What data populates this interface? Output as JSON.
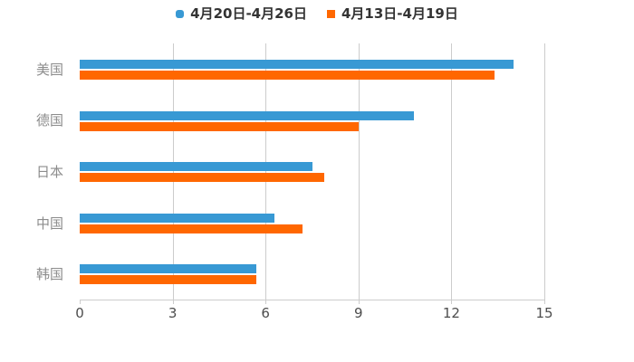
{
  "legend": {
    "items": [
      {
        "label": "4月20日-4月26日",
        "color": "#3899d4",
        "shape": "round"
      },
      {
        "label": "4月13日-4月19日",
        "color": "#ff6700",
        "shape": "square"
      }
    ]
  },
  "chart_data": {
    "type": "bar",
    "orientation": "horizontal",
    "title": "",
    "xlabel": "",
    "ylabel": "",
    "categories": [
      "美国",
      "德国",
      "日本",
      "中国",
      "韩国"
    ],
    "series": [
      {
        "name": "4月20日-4月26日",
        "color": "#3899d4",
        "values": [
          14.0,
          10.8,
          7.5,
          6.3,
          5.7
        ]
      },
      {
        "name": "4月13日-4月19日",
        "color": "#ff6700",
        "values": [
          13.4,
          9.0,
          7.9,
          7.2,
          5.7
        ]
      }
    ],
    "xlim": [
      0,
      15
    ],
    "xticks": [
      0,
      3,
      6,
      9,
      12,
      15
    ],
    "grid": true,
    "legend_position": "top",
    "colors": {
      "grid_line": "#cccccc",
      "axis_line": "#cccccc",
      "tick_label": "#4d4d4d",
      "category_label": "#8c8c8c",
      "legend_text": "#333333",
      "background": "#ffffff"
    }
  }
}
